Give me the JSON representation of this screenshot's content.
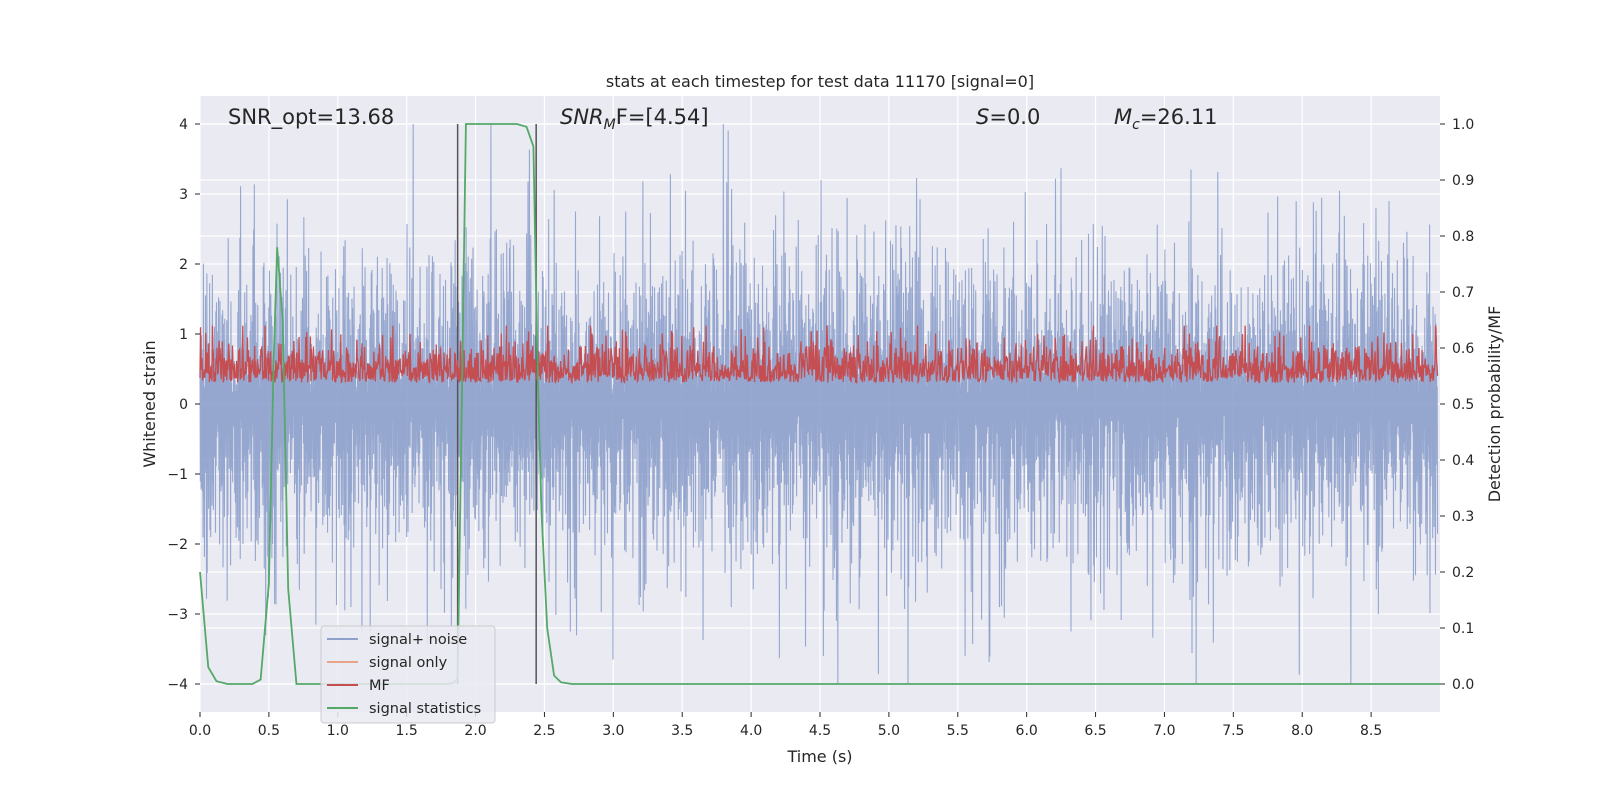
{
  "chart_data": {
    "type": "line",
    "title": "stats at each timestep for test data 11170 [signal=0]",
    "xlabel": "Time (s)",
    "ylabel": "Whitened strain",
    "y2label": "Detection probability/MF",
    "xlim": [
      0,
      9.0
    ],
    "ylim": [
      -4.4,
      4.4
    ],
    "y2lim": [
      -0.05,
      1.05
    ],
    "xticks": [
      0.0,
      0.5,
      1.0,
      1.5,
      2.0,
      2.5,
      3.0,
      3.5,
      4.0,
      4.5,
      5.0,
      5.5,
      6.0,
      6.5,
      7.0,
      7.5,
      8.0,
      8.5
    ],
    "yticks": [
      -4,
      -3,
      -2,
      -1,
      0,
      1,
      2,
      3,
      4
    ],
    "y2ticks": [
      0.0,
      0.1,
      0.2,
      0.3,
      0.4,
      0.5,
      0.6,
      0.7,
      0.8,
      0.9,
      1.0
    ],
    "xtick_labels": [
      "0.0",
      "0.5",
      "1.0",
      "1.5",
      "2.0",
      "2.5",
      "3.0",
      "3.5",
      "4.0",
      "4.5",
      "5.0",
      "5.5",
      "6.0",
      "6.5",
      "7.0",
      "7.5",
      "8.0",
      "8.5"
    ],
    "ytick_labels": [
      "−4",
      "−3",
      "−2",
      "−1",
      "0",
      "1",
      "2",
      "3",
      "4"
    ],
    "y2tick_labels": [
      "0.0",
      "0.1",
      "0.2",
      "0.3",
      "0.4",
      "0.5",
      "0.6",
      "0.7",
      "0.8",
      "0.9",
      "1.0"
    ],
    "grid": true,
    "legend_position": "bottom-left",
    "annotations": {
      "snr_opt": "SNR_opt=13.68",
      "snr_mf_main": "SNR",
      "snr_mf_sub": "M",
      "snr_mf_rest": "F=[4.54]",
      "s_main": "S",
      "s_rest": "=0.0",
      "mc_main": "M",
      "mc_sub": "c",
      "mc_rest": "=26.11"
    },
    "vertical_markers": [
      1.87,
      2.44
    ],
    "series": [
      {
        "name": "signal+ noise",
        "color": "#8da0cb",
        "noise_amplitude": 1.6
      },
      {
        "name": "signal only",
        "color": "#e8a488"
      },
      {
        "name": "MF",
        "color": "#c44e52",
        "baseline": 0.55
      },
      {
        "name": "signal statistics",
        "color": "#55a868",
        "x": [
          0.0,
          0.06,
          0.12,
          0.2,
          0.3,
          0.38,
          0.44,
          0.5,
          0.535,
          0.56,
          0.6,
          0.64,
          0.7,
          0.8,
          1.0,
          1.5,
          1.8,
          1.84,
          1.87,
          1.9,
          1.93,
          2.0,
          2.1,
          2.2,
          2.3,
          2.37,
          2.42,
          2.45,
          2.48,
          2.52,
          2.57,
          2.62,
          2.7,
          3.0,
          4.0,
          5.0,
          6.0,
          7.0,
          8.0,
          9.0
        ],
        "y": [
          0.2,
          0.03,
          0.005,
          0.0,
          0.0,
          0.0,
          0.008,
          0.18,
          0.58,
          0.78,
          0.65,
          0.17,
          0.0,
          0.0,
          0.0,
          0.0,
          0.0,
          0.002,
          0.01,
          0.5,
          1.0,
          1.0,
          1.0,
          1.0,
          1.0,
          0.995,
          0.96,
          0.56,
          0.3,
          0.1,
          0.015,
          0.003,
          0.0,
          0.0,
          0.0,
          0.0,
          0.0,
          0.0,
          0.0,
          0.0
        ]
      }
    ]
  }
}
